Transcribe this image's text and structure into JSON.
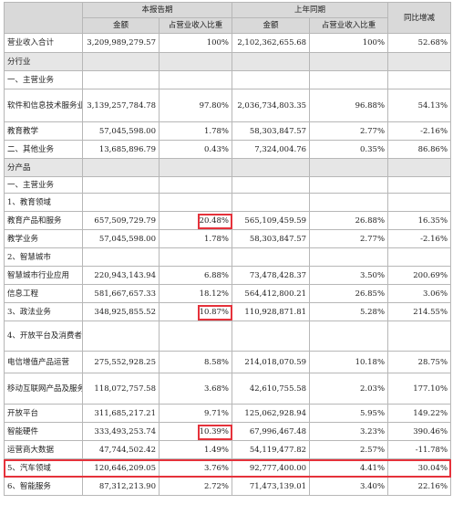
{
  "header": {
    "current_period": "本报告期",
    "prior_period": "上年同期",
    "yoy": "同比增减",
    "amount": "金额",
    "share": "占营业收入比重"
  },
  "rows": [
    {
      "h": 21,
      "type": "data",
      "label": "营业收入合计",
      "cur_amount": "3,209,989,279.57",
      "cur_share": "100%",
      "prev_amount": "2,102,362,655.68",
      "prev_share": "100%",
      "yoy": "52.68%"
    },
    {
      "h": 20,
      "type": "section",
      "label": "分行业"
    },
    {
      "h": 20,
      "type": "label",
      "label": "一、主营业务"
    },
    {
      "h": 36,
      "type": "data",
      "wrap": true,
      "label": "软件和信息技术服务业",
      "cur_amount": "3,139,257,784.78",
      "cur_share": "97.80%",
      "prev_amount": "2,036,734,803.35",
      "prev_share": "96.88%",
      "yoy": "54.13%"
    },
    {
      "h": 20,
      "type": "data",
      "label": "教育教学",
      "cur_amount": "57,045,598.00",
      "cur_share": "1.78%",
      "prev_amount": "58,303,847.57",
      "prev_share": "2.77%",
      "yoy": "-2.16%"
    },
    {
      "h": 20,
      "type": "data",
      "label": "二、其他业务",
      "cur_amount": "13,685,896.79",
      "cur_share": "0.43%",
      "prev_amount": "7,324,004.76",
      "prev_share": "0.35%",
      "yoy": "86.86%"
    },
    {
      "h": 20,
      "type": "section",
      "label": "分产品"
    },
    {
      "h": 18,
      "type": "label",
      "label": "一、主营业务"
    },
    {
      "h": 20,
      "type": "label",
      "label": "1、教育领域"
    },
    {
      "h": 20,
      "type": "data",
      "label": "教育产品和服务",
      "cur_amount": "657,509,729.79",
      "cur_share": "20.48%",
      "prev_amount": "565,109,459.59",
      "prev_share": "26.88%",
      "yoy": "16.35%"
    },
    {
      "h": 20,
      "type": "data",
      "label": "教学业务",
      "cur_amount": "57,045,598.00",
      "cur_share": "1.78%",
      "prev_amount": "58,303,847.57",
      "prev_share": "2.77%",
      "yoy": "-2.16%"
    },
    {
      "h": 20,
      "type": "label",
      "label": "2、智慧城市"
    },
    {
      "h": 20,
      "type": "data",
      "label": "智慧城市行业应用",
      "cur_amount": "220,943,143.94",
      "cur_share": "6.88%",
      "prev_amount": "73,478,428.37",
      "prev_share": "3.50%",
      "yoy": "200.69%"
    },
    {
      "h": 20,
      "type": "data",
      "label": "信息工程",
      "cur_amount": "581,667,657.33",
      "cur_share": "18.12%",
      "prev_amount": "564,412,800.21",
      "prev_share": "26.85%",
      "yoy": "3.06%"
    },
    {
      "h": 20,
      "type": "data",
      "label": "3、政法业务",
      "cur_amount": "348,925,855.52",
      "cur_share": "10.87%",
      "prev_amount": "110,928,871.81",
      "prev_share": "5.28%",
      "yoy": "214.55%"
    },
    {
      "h": 33,
      "type": "label",
      "wrap": true,
      "label": "4、开放平台及消费者业务"
    },
    {
      "h": 24,
      "type": "data",
      "label": "电信增值产品运营",
      "cur_amount": "275,552,928.25",
      "cur_share": "8.58%",
      "prev_amount": "214,018,070.59",
      "prev_share": "10.18%",
      "yoy": "28.75%"
    },
    {
      "h": 34,
      "type": "data",
      "wrap": true,
      "label": "移动互联网产品及服务",
      "cur_amount": "118,072,757.58",
      "cur_share": "3.68%",
      "prev_amount": "42,610,755.58",
      "prev_share": "2.03%",
      "yoy": "177.10%"
    },
    {
      "h": 20,
      "type": "data",
      "label": "开放平台",
      "cur_amount": "311,685,217.21",
      "cur_share": "9.71%",
      "prev_amount": "125,062,928.94",
      "prev_share": "5.95%",
      "yoy": "149.22%"
    },
    {
      "h": 20,
      "type": "data",
      "label": "智能硬件",
      "cur_amount": "333,493,253.74",
      "cur_share": "10.39%",
      "prev_amount": "67,996,467.48",
      "prev_share": "3.23%",
      "yoy": "390.46%"
    },
    {
      "h": 20,
      "type": "data",
      "label": "运营商大数据",
      "cur_amount": "47,744,502.42",
      "cur_share": "1.49%",
      "prev_amount": "54,119,477.82",
      "prev_share": "2.57%",
      "yoy": "-11.78%"
    },
    {
      "h": 20,
      "type": "data",
      "label": "5、汽车领域",
      "cur_amount": "120,646,209.05",
      "cur_share": "3.76%",
      "prev_amount": "92,777,400.00",
      "prev_share": "4.41%",
      "yoy": "30.04%"
    },
    {
      "h": 20,
      "type": "data",
      "label": "6、智能服务",
      "cur_amount": "87,312,213.90",
      "cur_share": "2.72%",
      "prev_amount": "71,473,139.01",
      "prev_share": "3.40%",
      "yoy": "22.16%"
    }
  ],
  "highlights": {
    "color": "#e5323b",
    "cells": [
      {
        "row": 9,
        "col": 2
      },
      {
        "row": 14,
        "col": 2
      },
      {
        "row": 19,
        "col": 2
      }
    ],
    "rows": [
      21
    ]
  }
}
